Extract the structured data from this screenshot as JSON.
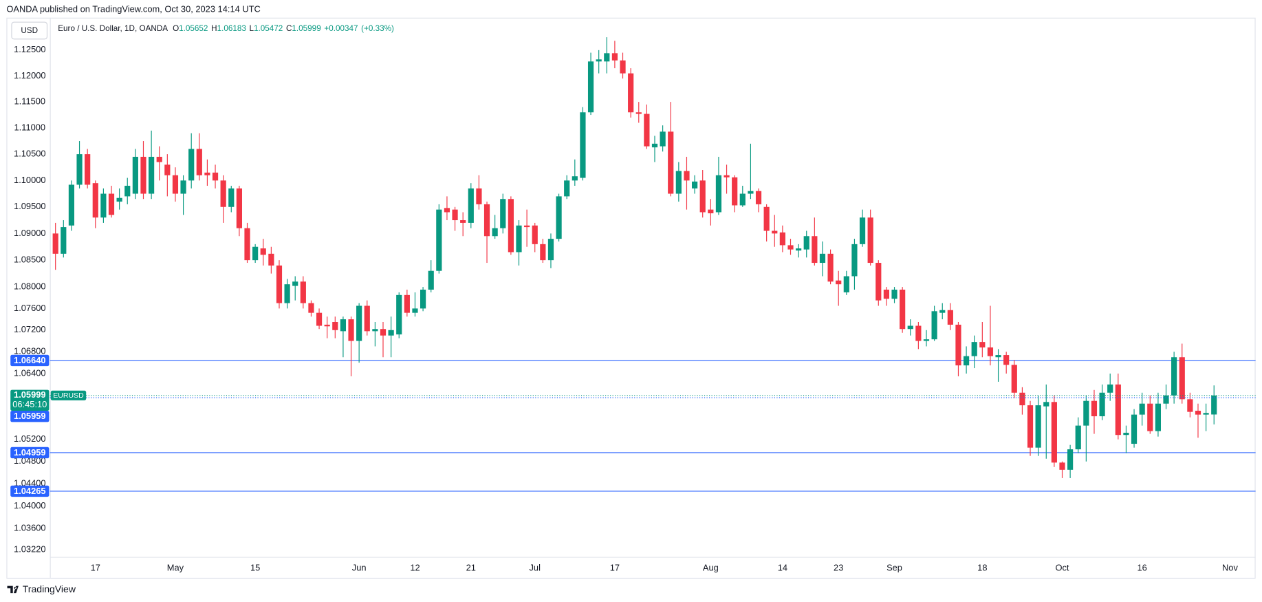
{
  "attribution": "OANDA published on TradingView.com, Oct 30, 2023 14:14 UTC",
  "footer": "TradingView",
  "chart_data": {
    "type": "candlestick",
    "title": "Euro / U.S. Dollar, 1D, OANDA",
    "currency": "USD",
    "symbol": "EURUSD",
    "legend": [
      {
        "label": "O",
        "value": 1.05652
      },
      {
        "label": "H",
        "value": 1.06183
      },
      {
        "label": "L",
        "value": 1.05472
      },
      {
        "label": "C",
        "value": 1.05999
      }
    ],
    "change": {
      "value": 0.00347,
      "label": "+0.00347"
    },
    "change_percent": {
      "value": 0.33,
      "label": "(+0.33%)"
    },
    "last_price": {
      "value": 1.05999,
      "label": "1.05999"
    },
    "countdown": "06:45:10",
    "bid_price": {
      "value": 1.05959,
      "label": "1.05959"
    },
    "levels": [
      {
        "value": 1.0664,
        "label": "1.06640"
      },
      {
        "value": 1.04959,
        "label": "1.04959"
      },
      {
        "value": 1.04265,
        "label": "1.04265"
      }
    ],
    "up_color": "#089981",
    "down_color": "#f23645",
    "level_color": "#2962ff",
    "log_scale": true,
    "grid": false,
    "ylim": [
      1.0309,
      1.1313
    ],
    "yticks": [
      {
        "value": 1.125,
        "label": "1.12500"
      },
      {
        "value": 1.12,
        "label": "1.12000"
      },
      {
        "value": 1.115,
        "label": "1.11500"
      },
      {
        "value": 1.11,
        "label": "1.11000"
      },
      {
        "value": 1.105,
        "label": "1.10500"
      },
      {
        "value": 1.1,
        "label": "1.10000"
      },
      {
        "value": 1.095,
        "label": "1.09500"
      },
      {
        "value": 1.09,
        "label": "1.09000"
      },
      {
        "value": 1.085,
        "label": "1.08500"
      },
      {
        "value": 1.08,
        "label": "1.08000"
      },
      {
        "value": 1.076,
        "label": "1.07600"
      },
      {
        "value": 1.072,
        "label": "1.07200"
      },
      {
        "value": 1.068,
        "label": "1.06800"
      },
      {
        "value": 1.064,
        "label": "1.06400"
      },
      {
        "value": 1.052,
        "label": "1.05200"
      },
      {
        "value": 1.048,
        "label": "1.04800"
      },
      {
        "value": 1.044,
        "label": "1.04400"
      },
      {
        "value": 1.04,
        "label": "1.04000"
      },
      {
        "value": 1.036,
        "label": "1.03600"
      },
      {
        "value": 1.0322,
        "label": "1.03220"
      }
    ],
    "xlim": [
      -0.7,
      150.2
    ],
    "xticks": [
      {
        "value": 5,
        "label": "17"
      },
      {
        "value": 15,
        "label": "May"
      },
      {
        "value": 25,
        "label": "15"
      },
      {
        "value": 38,
        "label": "Jun"
      },
      {
        "value": 45,
        "label": "12"
      },
      {
        "value": 52,
        "label": "21"
      },
      {
        "value": 60,
        "label": "Jul"
      },
      {
        "value": 70,
        "label": "17"
      },
      {
        "value": 82,
        "label": "Aug"
      },
      {
        "value": 91,
        "label": "14"
      },
      {
        "value": 98,
        "label": "23"
      },
      {
        "value": 105,
        "label": "Sep"
      },
      {
        "value": 116,
        "label": "18"
      },
      {
        "value": 126,
        "label": "Oct"
      },
      {
        "value": 136,
        "label": "16"
      },
      {
        "value": 147,
        "label": "Nov"
      }
    ],
    "open": [
      1.09,
      1.0862,
      1.0915,
      1.0992,
      1.105,
      1.0995,
      1.093,
      1.0975,
      1.096,
      1.097,
      1.0975,
      1.1045,
      1.0975,
      1.1045,
      1.103,
      1.101,
      1.0975,
      1.1,
      1.106,
      1.1015,
      1.1015,
      1.1,
      1.095,
      1.0985,
      1.091,
      1.085,
      1.0872,
      1.0862,
      1.084,
      1.077,
      1.0802,
      1.081,
      1.077,
      1.0752,
      1.073,
      1.0735,
      1.0718,
      1.074,
      1.07,
      1.0765,
      1.0718,
      1.0722,
      1.071,
      1.0712,
      1.0785,
      1.0752,
      1.076,
      1.0795,
      1.083,
      1.0948,
      1.0945,
      1.0925,
      1.092,
      1.0985,
      1.0955,
      1.0895,
      1.091,
      1.0965,
      1.0865,
      1.0915,
      1.0915,
      1.088,
      1.085,
      1.089,
      1.097,
      1.1,
      1.1005,
      1.113,
      1.1228,
      1.1228,
      1.1244,
      1.123,
      1.1205,
      1.113,
      1.1127,
      1.1063,
      1.1065,
      1.1093,
      1.0975,
      1.1018,
      1.0985,
      1.1,
      1.0945,
      1.094,
      1.101,
      1.1006,
      1.0953,
      1.0975,
      1.098,
      1.095,
      1.0905,
      1.0902,
      1.0878,
      1.0868,
      1.087,
      1.0895,
      1.0845,
      1.0862,
      1.0812,
      1.079,
      1.082,
      1.088,
      1.093,
      1.0845,
      1.0795,
      1.0778,
      1.0795,
      1.0722,
      1.0728,
      1.07,
      1.0703,
      1.0752,
      1.0757,
      1.073,
      1.0655,
      1.0672,
      1.0698,
      1.0688,
      1.067,
      1.0674,
      1.0656,
      1.0605,
      1.0582,
      1.0505,
      1.058,
      1.0588,
      1.0478,
      1.0465,
      1.0502,
      1.0545,
      1.059,
      1.0562,
      1.0605,
      1.062,
      1.0528,
      1.0512,
      1.0565,
      1.0585,
      1.0535,
      1.0585,
      1.06,
      1.067,
      1.0593,
      1.0572,
      1.0565,
      1.05652
    ],
    "high": [
      1.092,
      1.0925,
      1.1,
      1.1075,
      1.106,
      1.1,
      1.0985,
      1.099,
      1.0985,
      1.1005,
      1.106,
      1.1075,
      1.1095,
      1.1065,
      1.105,
      1.1025,
      1.101,
      1.109,
      1.109,
      1.104,
      1.103,
      1.101,
      1.099,
      1.099,
      1.092,
      1.088,
      1.089,
      1.0875,
      1.085,
      1.0815,
      1.082,
      1.082,
      1.0775,
      1.076,
      1.0745,
      1.0745,
      1.0745,
      1.0745,
      1.077,
      1.0775,
      1.0735,
      1.0735,
      1.0745,
      1.079,
      1.0795,
      1.079,
      1.08,
      1.085,
      1.0955,
      1.097,
      1.095,
      1.094,
      1.0995,
      1.101,
      1.096,
      1.0935,
      1.0975,
      1.097,
      1.0925,
      1.0945,
      1.092,
      1.089,
      1.09,
      1.0975,
      1.101,
      1.104,
      1.114,
      1.1245,
      1.125,
      1.1275,
      1.1268,
      1.1245,
      1.1215,
      1.115,
      1.1145,
      1.1085,
      1.1105,
      1.115,
      1.1035,
      1.1045,
      1.101,
      1.102,
      1.0965,
      1.1045,
      1.103,
      1.101,
      1.099,
      1.107,
      1.0985,
      1.0955,
      1.0935,
      1.0915,
      1.089,
      1.088,
      1.0905,
      1.093,
      1.0885,
      1.087,
      1.083,
      1.083,
      1.089,
      1.0945,
      1.0945,
      1.085,
      1.08,
      1.08,
      1.08,
      1.074,
      1.0735,
      1.072,
      1.0765,
      1.077,
      1.077,
      1.0735,
      1.069,
      1.071,
      1.0735,
      1.0765,
      1.0685,
      1.068,
      1.0665,
      1.0615,
      1.059,
      1.06,
      1.062,
      1.06,
      1.048,
      1.051,
      1.056,
      1.06,
      1.061,
      1.062,
      1.064,
      1.064,
      1.0545,
      1.0575,
      1.0605,
      1.06,
      1.0605,
      1.062,
      1.068,
      1.0695,
      1.0605,
      1.0585,
      1.0585,
      1.06183
    ],
    "low": [
      1.0832,
      1.0855,
      1.0905,
      1.0985,
      1.0985,
      1.091,
      1.092,
      1.093,
      1.0945,
      1.0955,
      1.0965,
      1.0965,
      1.0965,
      1.1,
      1.097,
      1.096,
      1.0935,
      1.0985,
      1.1,
      1.099,
      1.0985,
      1.092,
      1.094,
      1.0895,
      1.0845,
      1.0845,
      1.084,
      1.0825,
      1.076,
      1.076,
      1.0775,
      1.076,
      1.0745,
      1.0722,
      1.0705,
      1.0705,
      1.067,
      1.0635,
      1.066,
      1.071,
      1.069,
      1.067,
      1.067,
      1.0705,
      1.0745,
      1.0745,
      1.0755,
      1.079,
      1.0825,
      1.0925,
      1.0905,
      1.0895,
      1.091,
      1.0945,
      1.0845,
      1.089,
      1.09,
      1.086,
      1.084,
      1.0875,
      1.0865,
      1.0845,
      1.0835,
      1.0885,
      1.0965,
      1.099,
      1.1,
      1.1125,
      1.1205,
      1.1205,
      1.1215,
      1.1195,
      1.112,
      1.111,
      1.106,
      1.1035,
      1.1055,
      1.097,
      1.096,
      1.0945,
      1.0975,
      1.093,
      1.0915,
      1.0935,
      1.0975,
      1.094,
      1.095,
      1.0965,
      1.094,
      1.0885,
      1.0875,
      1.0865,
      1.086,
      1.0855,
      1.0855,
      1.084,
      1.082,
      1.0805,
      1.0765,
      1.0785,
      1.0795,
      1.0875,
      1.084,
      1.0765,
      1.0765,
      1.077,
      1.0715,
      1.071,
      1.0685,
      1.069,
      1.07,
      1.074,
      1.072,
      1.0635,
      1.064,
      1.065,
      1.067,
      1.0655,
      1.0625,
      1.064,
      1.0595,
      1.0565,
      1.049,
      1.049,
      1.0485,
      1.047,
      1.045,
      1.045,
      1.0495,
      1.048,
      1.053,
      1.0555,
      1.059,
      1.052,
      1.0495,
      1.0505,
      1.0545,
      1.053,
      1.0525,
      1.0575,
      1.0585,
      1.0585,
      1.056,
      1.0523,
      1.0535,
      1.05472
    ],
    "close": [
      1.0862,
      1.0912,
      1.0992,
      1.105,
      1.0992,
      1.093,
      1.0975,
      1.0935,
      1.0967,
      1.099,
      1.1045,
      1.0975,
      1.1045,
      1.1035,
      1.101,
      1.0975,
      1.1,
      1.106,
      1.101,
      1.101,
      1.1,
      1.095,
      1.0985,
      1.091,
      1.085,
      1.0875,
      1.086,
      1.084,
      1.077,
      1.0805,
      1.081,
      1.077,
      1.0752,
      1.0728,
      1.0727,
      1.072,
      1.074,
      1.07,
      1.0765,
      1.0718,
      1.0722,
      1.071,
      1.072,
      1.0785,
      1.0752,
      1.076,
      1.0795,
      1.083,
      1.0945,
      1.094,
      1.0925,
      1.092,
      1.0985,
      1.0955,
      1.0895,
      1.091,
      1.0965,
      1.0865,
      1.0915,
      1.0912,
      1.088,
      1.085,
      1.089,
      1.097,
      1.1,
      1.1008,
      1.113,
      1.1228,
      1.1232,
      1.1244,
      1.123,
      1.1205,
      1.113,
      1.1127,
      1.1065,
      1.107,
      1.1093,
      1.0975,
      1.1018,
      1.1,
      1.0998,
      1.094,
      1.0938,
      1.101,
      1.1006,
      1.0953,
      1.0975,
      1.098,
      1.0955,
      1.0905,
      1.09,
      1.0878,
      1.087,
      1.0872,
      1.0895,
      1.0845,
      1.0862,
      1.081,
      1.0805,
      1.082,
      1.088,
      1.093,
      1.0845,
      1.0775,
      1.0778,
      1.0795,
      1.0722,
      1.0728,
      1.07,
      1.0703,
      1.0755,
      1.0757,
      1.073,
      1.0655,
      1.0672,
      1.0698,
      1.0688,
      1.0672,
      1.0674,
      1.0656,
      1.0605,
      1.0582,
      1.0505,
      1.0582,
      1.0588,
      1.0478,
      1.0465,
      1.0502,
      1.0545,
      1.059,
      1.0562,
      1.0605,
      1.062,
      1.0528,
      1.0532,
      1.0565,
      1.0585,
      1.0535,
      1.0585,
      1.06,
      1.067,
      1.0593,
      1.057,
      1.0565,
      1.0568,
      1.05999
    ]
  }
}
